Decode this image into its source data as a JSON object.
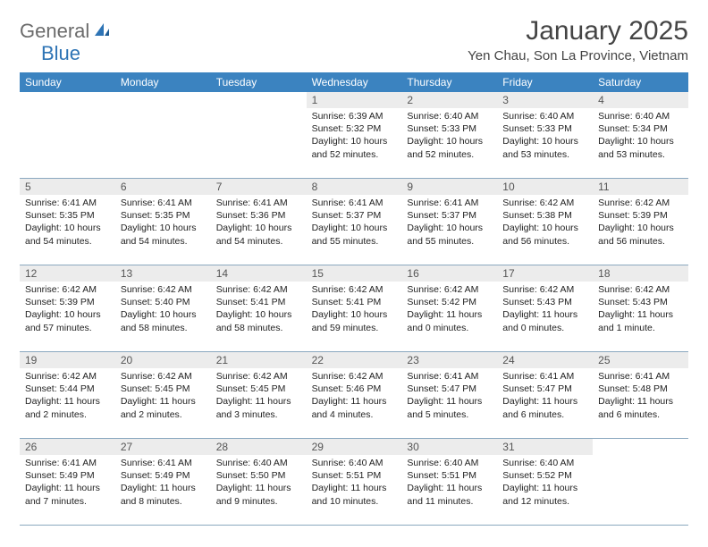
{
  "logo": {
    "part1": "General",
    "part2": "Blue"
  },
  "title": "January 2025",
  "location": "Yen Chau, Son La Province, Vietnam",
  "colors": {
    "header_bg": "#3b83c0",
    "daynum_bg": "#ececec",
    "rule": "#8aa8bf",
    "logo_gray": "#6b6b6b",
    "logo_blue": "#2e74b5"
  },
  "dayNames": [
    "Sunday",
    "Monday",
    "Tuesday",
    "Wednesday",
    "Thursday",
    "Friday",
    "Saturday"
  ],
  "weeks": [
    {
      "nums": [
        "",
        "",
        "",
        "1",
        "2",
        "3",
        "4"
      ],
      "cells": [
        null,
        null,
        null,
        {
          "sunrise": "6:39 AM",
          "sunset": "5:32 PM",
          "daylight": "10 hours and 52 minutes."
        },
        {
          "sunrise": "6:40 AM",
          "sunset": "5:33 PM",
          "daylight": "10 hours and 52 minutes."
        },
        {
          "sunrise": "6:40 AM",
          "sunset": "5:33 PM",
          "daylight": "10 hours and 53 minutes."
        },
        {
          "sunrise": "6:40 AM",
          "sunset": "5:34 PM",
          "daylight": "10 hours and 53 minutes."
        }
      ]
    },
    {
      "nums": [
        "5",
        "6",
        "7",
        "8",
        "9",
        "10",
        "11"
      ],
      "cells": [
        {
          "sunrise": "6:41 AM",
          "sunset": "5:35 PM",
          "daylight": "10 hours and 54 minutes."
        },
        {
          "sunrise": "6:41 AM",
          "sunset": "5:35 PM",
          "daylight": "10 hours and 54 minutes."
        },
        {
          "sunrise": "6:41 AM",
          "sunset": "5:36 PM",
          "daylight": "10 hours and 54 minutes."
        },
        {
          "sunrise": "6:41 AM",
          "sunset": "5:37 PM",
          "daylight": "10 hours and 55 minutes."
        },
        {
          "sunrise": "6:41 AM",
          "sunset": "5:37 PM",
          "daylight": "10 hours and 55 minutes."
        },
        {
          "sunrise": "6:42 AM",
          "sunset": "5:38 PM",
          "daylight": "10 hours and 56 minutes."
        },
        {
          "sunrise": "6:42 AM",
          "sunset": "5:39 PM",
          "daylight": "10 hours and 56 minutes."
        }
      ]
    },
    {
      "nums": [
        "12",
        "13",
        "14",
        "15",
        "16",
        "17",
        "18"
      ],
      "cells": [
        {
          "sunrise": "6:42 AM",
          "sunset": "5:39 PM",
          "daylight": "10 hours and 57 minutes."
        },
        {
          "sunrise": "6:42 AM",
          "sunset": "5:40 PM",
          "daylight": "10 hours and 58 minutes."
        },
        {
          "sunrise": "6:42 AM",
          "sunset": "5:41 PM",
          "daylight": "10 hours and 58 minutes."
        },
        {
          "sunrise": "6:42 AM",
          "sunset": "5:41 PM",
          "daylight": "10 hours and 59 minutes."
        },
        {
          "sunrise": "6:42 AM",
          "sunset": "5:42 PM",
          "daylight": "11 hours and 0 minutes."
        },
        {
          "sunrise": "6:42 AM",
          "sunset": "5:43 PM",
          "daylight": "11 hours and 0 minutes."
        },
        {
          "sunrise": "6:42 AM",
          "sunset": "5:43 PM",
          "daylight": "11 hours and 1 minute."
        }
      ]
    },
    {
      "nums": [
        "19",
        "20",
        "21",
        "22",
        "23",
        "24",
        "25"
      ],
      "cells": [
        {
          "sunrise": "6:42 AM",
          "sunset": "5:44 PM",
          "daylight": "11 hours and 2 minutes."
        },
        {
          "sunrise": "6:42 AM",
          "sunset": "5:45 PM",
          "daylight": "11 hours and 2 minutes."
        },
        {
          "sunrise": "6:42 AM",
          "sunset": "5:45 PM",
          "daylight": "11 hours and 3 minutes."
        },
        {
          "sunrise": "6:42 AM",
          "sunset": "5:46 PM",
          "daylight": "11 hours and 4 minutes."
        },
        {
          "sunrise": "6:41 AM",
          "sunset": "5:47 PM",
          "daylight": "11 hours and 5 minutes."
        },
        {
          "sunrise": "6:41 AM",
          "sunset": "5:47 PM",
          "daylight": "11 hours and 6 minutes."
        },
        {
          "sunrise": "6:41 AM",
          "sunset": "5:48 PM",
          "daylight": "11 hours and 6 minutes."
        }
      ]
    },
    {
      "nums": [
        "26",
        "27",
        "28",
        "29",
        "30",
        "31",
        ""
      ],
      "cells": [
        {
          "sunrise": "6:41 AM",
          "sunset": "5:49 PM",
          "daylight": "11 hours and 7 minutes."
        },
        {
          "sunrise": "6:41 AM",
          "sunset": "5:49 PM",
          "daylight": "11 hours and 8 minutes."
        },
        {
          "sunrise": "6:40 AM",
          "sunset": "5:50 PM",
          "daylight": "11 hours and 9 minutes."
        },
        {
          "sunrise": "6:40 AM",
          "sunset": "5:51 PM",
          "daylight": "11 hours and 10 minutes."
        },
        {
          "sunrise": "6:40 AM",
          "sunset": "5:51 PM",
          "daylight": "11 hours and 11 minutes."
        },
        {
          "sunrise": "6:40 AM",
          "sunset": "5:52 PM",
          "daylight": "11 hours and 12 minutes."
        },
        null
      ]
    }
  ],
  "labels": {
    "sunrise": "Sunrise:",
    "sunset": "Sunset:",
    "daylight": "Daylight:"
  }
}
